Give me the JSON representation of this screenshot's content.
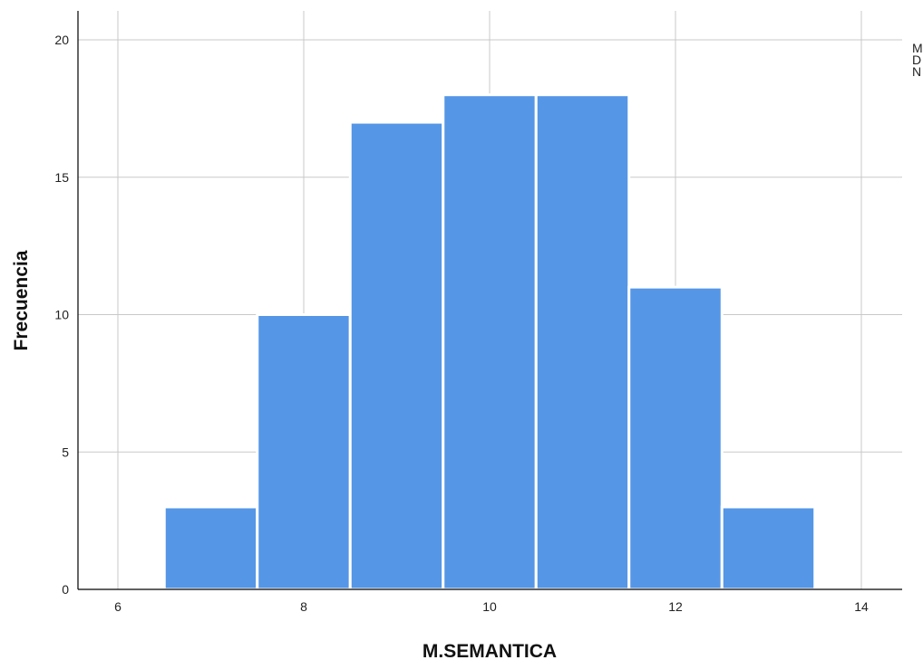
{
  "chart_data": {
    "type": "bar",
    "subtype": "histogram",
    "xlabel": "M.SEMANTICA",
    "ylabel": "Frecuencia",
    "xlim": [
      5.1,
      14.9
    ],
    "ylim": [
      0,
      21
    ],
    "xticks": [
      6,
      8,
      10,
      12,
      14
    ],
    "yticks": [
      0,
      5,
      10,
      15,
      20
    ],
    "bin_width": 1,
    "bins": [
      {
        "center": 7,
        "count": 3
      },
      {
        "center": 8,
        "count": 10
      },
      {
        "center": 9,
        "count": 17
      },
      {
        "center": 10,
        "count": 18
      },
      {
        "center": 11,
        "count": 18
      },
      {
        "center": 12,
        "count": 11
      },
      {
        "center": 13,
        "count": 3
      }
    ],
    "grid": true,
    "bar_color": "#5596e6",
    "side_stats_labels": [
      "M",
      "D",
      "N"
    ]
  }
}
